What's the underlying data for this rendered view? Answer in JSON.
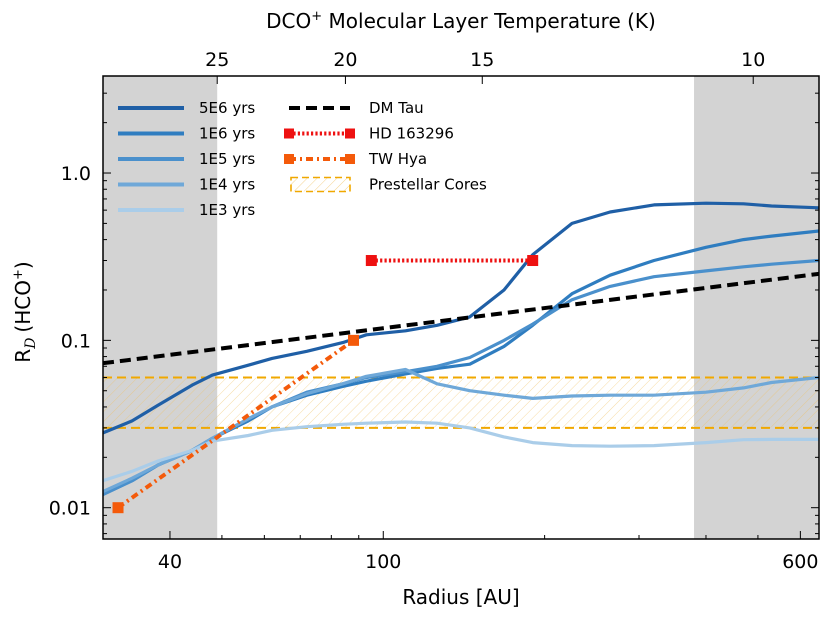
{
  "chart_data": {
    "type": "line",
    "xlabel": "Radius [AU]",
    "ylabel_main": "R",
    "ylabel_sub": "D",
    "ylabel_species": "(HCO",
    "ylabel_sup": "+",
    "ylabel_close": ")",
    "top_axis_title": "DCO",
    "top_axis_title_sup": "+",
    "top_axis_title_rest": " Molecular Layer Temperature (K)",
    "x_scale": "log",
    "y_scale": "log",
    "xlim": [
      30,
      650
    ],
    "ylim": [
      0.0065,
      3.8
    ],
    "x_ticks": [
      {
        "value": 40,
        "label": "40"
      },
      {
        "value": 100,
        "label": "100"
      },
      {
        "value": 600,
        "label": "600"
      }
    ],
    "y_ticks": [
      {
        "value": 0.01,
        "label": "0.01"
      },
      {
        "value": 0.1,
        "label": "0.1"
      },
      {
        "value": 1.0,
        "label": "1.0"
      }
    ],
    "top_ticks": [
      {
        "radius": 49,
        "label": "25"
      },
      {
        "radius": 85,
        "label": "20"
      },
      {
        "radius": 153,
        "label": "15"
      },
      {
        "radius": 490,
        "label": "10"
      }
    ],
    "shaded_regions": [
      {
        "x_from": 30,
        "x_to": 49,
        "color": "#d3d3d3"
      },
      {
        "x_from": 380,
        "x_to": 650,
        "color": "#d3d3d3"
      }
    ],
    "prestellar_band": {
      "y_from": 0.03,
      "y_to": 0.06,
      "color": "#f0a800"
    },
    "series": [
      {
        "name": "5E6 yrs",
        "color": "#1f5fa6",
        "style": "solid",
        "points": [
          [
            30,
            0.028
          ],
          [
            34,
            0.033
          ],
          [
            38,
            0.041
          ],
          [
            44,
            0.054
          ],
          [
            48,
            0.062
          ],
          [
            56,
            0.071
          ],
          [
            62,
            0.078
          ],
          [
            72,
            0.086
          ],
          [
            84,
            0.097
          ],
          [
            93,
            0.108
          ],
          [
            110,
            0.114
          ],
          [
            126,
            0.123
          ],
          [
            145,
            0.138
          ],
          [
            168,
            0.2
          ],
          [
            190,
            0.325
          ],
          [
            225,
            0.5
          ],
          [
            265,
            0.585
          ],
          [
            320,
            0.645
          ],
          [
            400,
            0.66
          ],
          [
            470,
            0.655
          ],
          [
            530,
            0.635
          ],
          [
            650,
            0.62
          ]
        ]
      },
      {
        "name": "1E6 yrs",
        "color": "#2f7dc0",
        "style": "solid",
        "points": [
          [
            30,
            0.012
          ],
          [
            34,
            0.0145
          ],
          [
            38,
            0.018
          ],
          [
            44,
            0.022
          ],
          [
            48,
            0.026
          ],
          [
            56,
            0.033
          ],
          [
            62,
            0.04
          ],
          [
            72,
            0.047
          ],
          [
            84,
            0.053
          ],
          [
            93,
            0.057
          ],
          [
            110,
            0.063
          ],
          [
            126,
            0.068
          ],
          [
            145,
            0.072
          ],
          [
            168,
            0.092
          ],
          [
            190,
            0.123
          ],
          [
            225,
            0.19
          ],
          [
            265,
            0.245
          ],
          [
            320,
            0.3
          ],
          [
            400,
            0.36
          ],
          [
            470,
            0.4
          ],
          [
            530,
            0.42
          ],
          [
            650,
            0.45
          ]
        ]
      },
      {
        "name": "1E5 yrs",
        "color": "#4a90cc",
        "style": "solid",
        "points": [
          [
            30,
            0.012
          ],
          [
            34,
            0.0145
          ],
          [
            38,
            0.018
          ],
          [
            44,
            0.022
          ],
          [
            48,
            0.026
          ],
          [
            56,
            0.034
          ],
          [
            62,
            0.04
          ],
          [
            72,
            0.049
          ],
          [
            84,
            0.055
          ],
          [
            93,
            0.06
          ],
          [
            110,
            0.065
          ],
          [
            126,
            0.07
          ],
          [
            145,
            0.079
          ],
          [
            168,
            0.1
          ],
          [
            190,
            0.125
          ],
          [
            225,
            0.175
          ],
          [
            265,
            0.21
          ],
          [
            320,
            0.24
          ],
          [
            400,
            0.26
          ],
          [
            470,
            0.275
          ],
          [
            530,
            0.285
          ],
          [
            650,
            0.3
          ]
        ]
      },
      {
        "name": "1E4 yrs",
        "color": "#6fa8d8",
        "style": "solid",
        "points": [
          [
            30,
            0.0125
          ],
          [
            34,
            0.015
          ],
          [
            38,
            0.018
          ],
          [
            44,
            0.022
          ],
          [
            48,
            0.026
          ],
          [
            56,
            0.034
          ],
          [
            62,
            0.04
          ],
          [
            72,
            0.048
          ],
          [
            84,
            0.055
          ],
          [
            93,
            0.061
          ],
          [
            110,
            0.067
          ],
          [
            126,
            0.055
          ],
          [
            145,
            0.05
          ],
          [
            168,
            0.047
          ],
          [
            190,
            0.045
          ],
          [
            225,
            0.0465
          ],
          [
            265,
            0.047
          ],
          [
            320,
            0.047
          ],
          [
            400,
            0.049
          ],
          [
            470,
            0.052
          ],
          [
            530,
            0.056
          ],
          [
            650,
            0.06
          ]
        ]
      },
      {
        "name": "1E3 yrs",
        "color": "#aacde9",
        "style": "solid",
        "points": [
          [
            30,
            0.0145
          ],
          [
            34,
            0.0165
          ],
          [
            38,
            0.019
          ],
          [
            44,
            0.022
          ],
          [
            48,
            0.025
          ],
          [
            56,
            0.027
          ],
          [
            62,
            0.029
          ],
          [
            72,
            0.0305
          ],
          [
            84,
            0.0315
          ],
          [
            93,
            0.032
          ],
          [
            110,
            0.0325
          ],
          [
            126,
            0.032
          ],
          [
            145,
            0.03
          ],
          [
            168,
            0.0265
          ],
          [
            190,
            0.0245
          ],
          [
            225,
            0.0235
          ],
          [
            265,
            0.0233
          ],
          [
            320,
            0.0235
          ],
          [
            400,
            0.0245
          ],
          [
            470,
            0.0255
          ],
          [
            530,
            0.0256
          ],
          [
            650,
            0.0256
          ]
        ]
      },
      {
        "name": "DM Tau",
        "color": "#000000",
        "style": "dashed",
        "points": [
          [
            30,
            0.073
          ],
          [
            650,
            0.25
          ]
        ]
      },
      {
        "name": "HD 163296",
        "color": "#ee1111",
        "style": "dotted",
        "marker": "square",
        "points": [
          [
            95,
            0.3
          ],
          [
            190,
            0.3
          ]
        ]
      },
      {
        "name": "TW Hya",
        "color": "#f45a0a",
        "style": "dashdot",
        "marker": "square",
        "points": [
          [
            32,
            0.01
          ],
          [
            88,
            0.1
          ]
        ]
      }
    ],
    "legend_left": [
      "5E6 yrs",
      "1E6 yrs",
      "1E5 yrs",
      "1E4 yrs",
      "1E3 yrs"
    ],
    "legend_right": [
      "DM Tau",
      "HD 163296",
      "TW Hya",
      "Prestellar Cores"
    ],
    "legend_placement": "top-left",
    "grid": false
  }
}
